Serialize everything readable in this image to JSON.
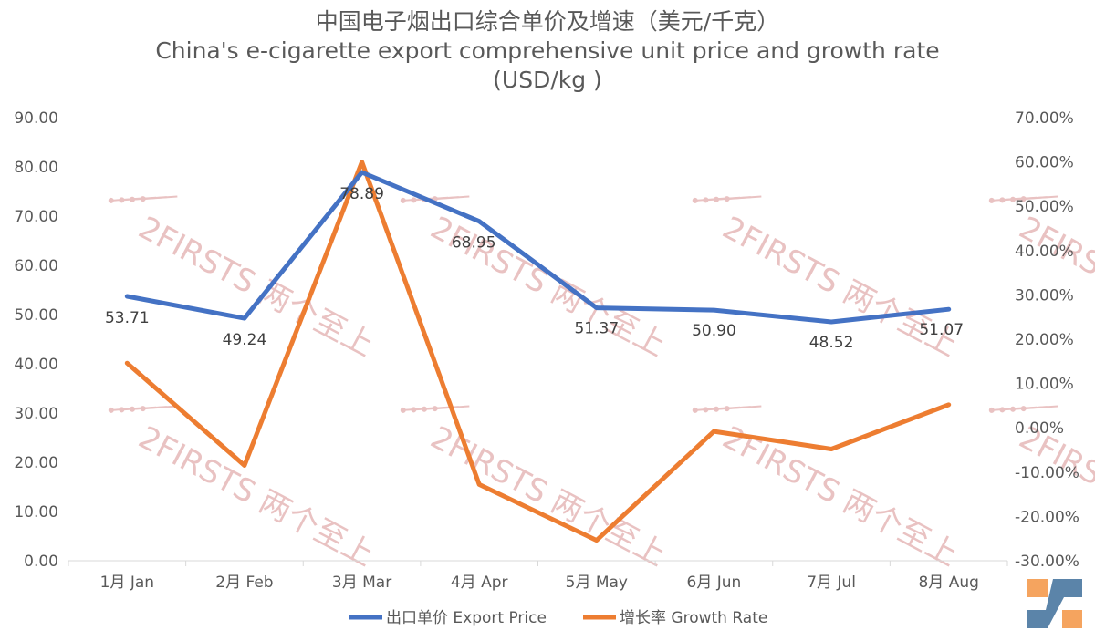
{
  "chart_data": {
    "type": "line",
    "title": "中国电子烟出口综合单价及增速（美元/千克）",
    "subtitle": "China's e-cigarette export comprehensive unit price and growth rate",
    "subtitle_unit": "(USD/kg )",
    "categories": [
      "1月 Jan",
      "2月 Feb",
      "3月 Mar",
      "4月 Apr",
      "5月 May",
      "6月 Jun",
      "7月 Jul",
      "8月 Aug"
    ],
    "series": [
      {
        "name": "出口单价 Export Price",
        "axis": "left",
        "color": "#4472C4",
        "values": [
          53.71,
          49.24,
          78.89,
          68.95,
          51.37,
          50.9,
          48.52,
          51.07
        ],
        "labels": [
          "53.71",
          "49.24",
          "78.89",
          "68.95",
          "51.37",
          "50.90",
          "48.52",
          "51.07"
        ]
      },
      {
        "name": "增长率 Growth Rate",
        "axis": "right",
        "color": "#ED7D31",
        "values": [
          14.6,
          -8.5,
          60.0,
          -12.8,
          -25.4,
          -0.8,
          -4.8,
          5.2
        ]
      }
    ],
    "y_left": {
      "range": [
        0,
        90
      ],
      "ticks": [
        "0.00",
        "10.00",
        "20.00",
        "30.00",
        "40.00",
        "50.00",
        "60.00",
        "70.00",
        "80.00",
        "90.00"
      ]
    },
    "y_right": {
      "range": [
        -30,
        70
      ],
      "ticks": [
        "-30.00%",
        "-20.00%",
        "-10.00%",
        "0.00%",
        "10.00%",
        "20.00%",
        "30.00%",
        "40.00%",
        "50.00%",
        "60.00%",
        "70.00%"
      ]
    },
    "grid": false,
    "legend_position": "bottom"
  },
  "watermark": {
    "text": "2FIRSTS 两个至上",
    "color": "#e9c2c2"
  },
  "logo": {
    "name": "logo-icon",
    "colors": [
      "#f5a45f",
      "#5b84a9"
    ]
  }
}
